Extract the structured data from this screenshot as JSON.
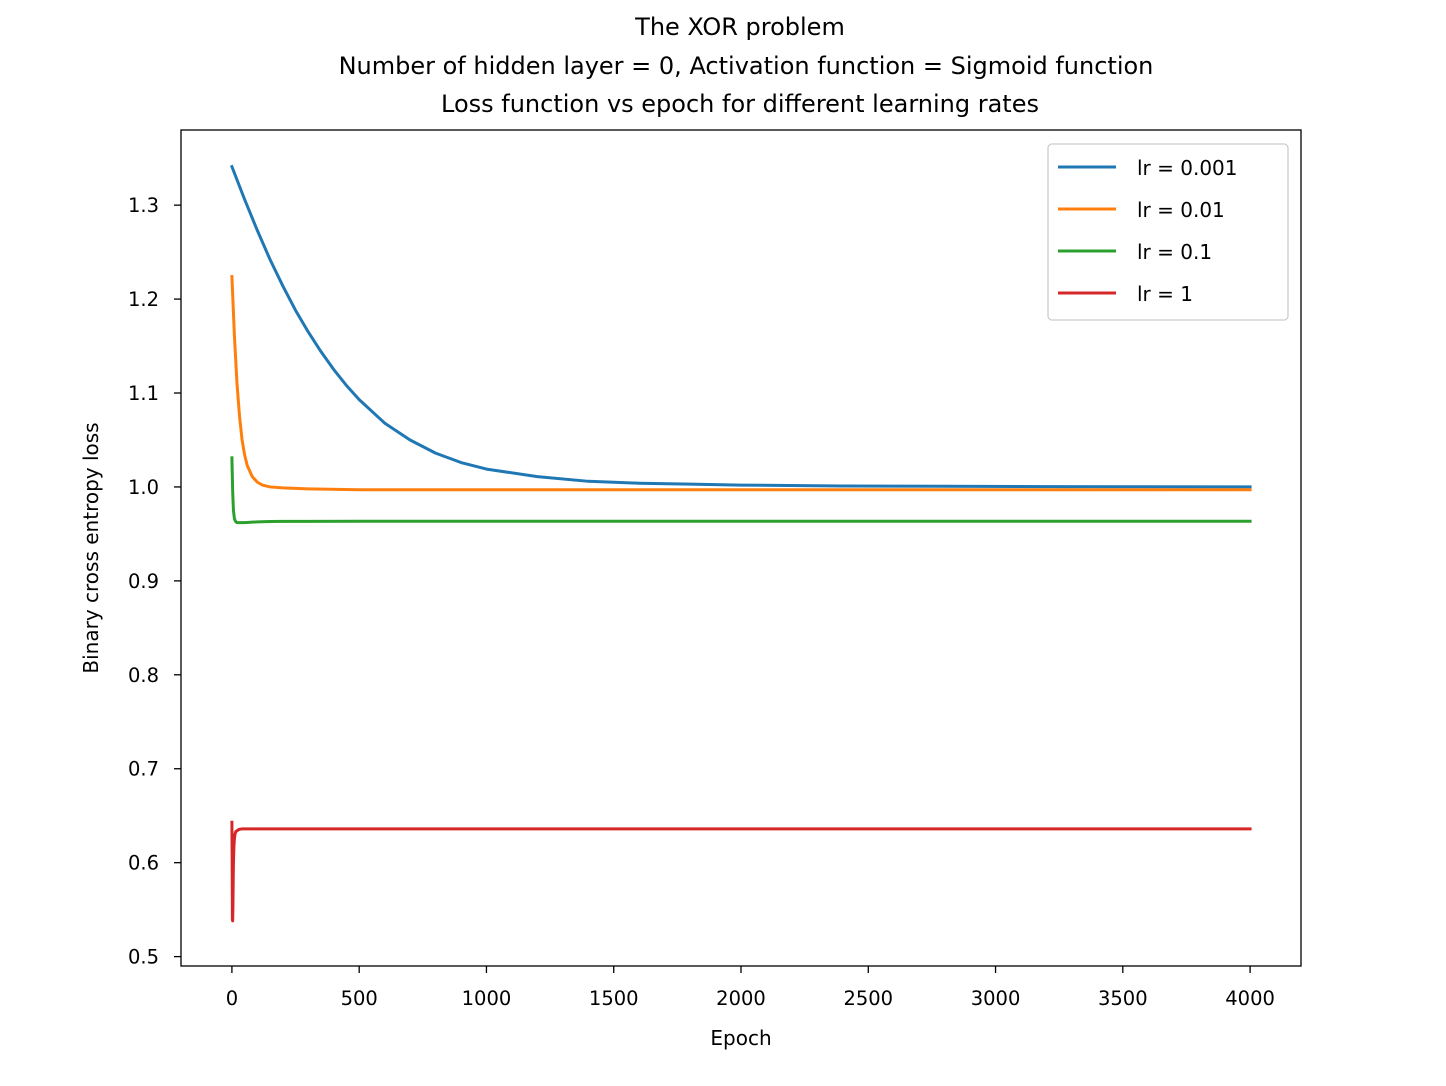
{
  "chart_data": {
    "type": "line",
    "title": "The XOR problem",
    "subtitle": "Number of hidden layer = 0, Activation function = Sigmoid function",
    "subtitle2": "Loss function vs epoch for different learning rates",
    "xlabel": "Epoch",
    "ylabel": "Binary cross entropy loss",
    "xlim": [
      -200,
      4200
    ],
    "ylim": [
      0.49,
      1.38
    ],
    "xticks": [
      0,
      500,
      1000,
      1500,
      2000,
      2500,
      3000,
      3500,
      4000
    ],
    "xtick_labels": [
      "0",
      "500",
      "1000",
      "1500",
      "2000",
      "2500",
      "3000",
      "3500",
      "4000"
    ],
    "yticks": [
      0.5,
      0.6,
      0.7,
      0.8,
      0.9,
      1.0,
      1.1,
      1.2,
      1.3
    ],
    "ytick_labels": [
      "0.5",
      "0.6",
      "0.7",
      "0.8",
      "0.9",
      "1.0",
      "1.1",
      "1.2",
      "1.3"
    ],
    "grid": false,
    "legend_position": "top-right",
    "series": [
      {
        "name": "lr = 0.001",
        "color": "#1f77b4",
        "x": [
          0,
          50,
          100,
          150,
          200,
          250,
          300,
          350,
          400,
          450,
          500,
          600,
          700,
          800,
          900,
          1000,
          1200,
          1400,
          1600,
          1800,
          2000,
          2400,
          2800,
          3200,
          3600,
          4000
        ],
        "y": [
          1.341,
          1.306,
          1.273,
          1.242,
          1.214,
          1.188,
          1.165,
          1.144,
          1.125,
          1.108,
          1.093,
          1.068,
          1.05,
          1.036,
          1.026,
          1.019,
          1.011,
          1.006,
          1.004,
          1.003,
          1.002,
          1.001,
          1.0007,
          1.0004,
          1.0002,
          1.0001
        ]
      },
      {
        "name": "lr = 0.01",
        "color": "#ff7f0e",
        "x": [
          0,
          10,
          20,
          30,
          40,
          50,
          60,
          80,
          100,
          120,
          150,
          200,
          300,
          500,
          1000,
          1500,
          2000,
          3000,
          4000
        ],
        "y": [
          1.224,
          1.16,
          1.11,
          1.075,
          1.05,
          1.034,
          1.023,
          1.011,
          1.005,
          1.002,
          1.0,
          0.999,
          0.998,
          0.997,
          0.997,
          0.997,
          0.997,
          0.997,
          0.997
        ]
      },
      {
        "name": "lr = 0.1",
        "color": "#2ca02c",
        "x": [
          0,
          3,
          6,
          10,
          15,
          20,
          30,
          45,
          60,
          80,
          100,
          150,
          200,
          300,
          500,
          1000,
          2000,
          3000,
          4000
        ],
        "y": [
          1.031,
          0.995,
          0.975,
          0.966,
          0.963,
          0.962,
          0.962,
          0.962,
          0.9622,
          0.9625,
          0.9628,
          0.9632,
          0.9633,
          0.9634,
          0.9635,
          0.9635,
          0.9635,
          0.9635,
          0.9635
        ]
      },
      {
        "name": "lr = 1",
        "color": "#d62728",
        "x": [
          0,
          1,
          2,
          3,
          4,
          5,
          6,
          8,
          10,
          12,
          15,
          20,
          25,
          30,
          40,
          50,
          70,
          100,
          200,
          500,
          1000,
          2000,
          3000,
          4000
        ],
        "y": [
          0.643,
          0.6,
          0.54,
          0.538,
          0.555,
          0.58,
          0.6,
          0.618,
          0.626,
          0.63,
          0.633,
          0.634,
          0.635,
          0.6355,
          0.636,
          0.636,
          0.636,
          0.636,
          0.636,
          0.636,
          0.636,
          0.636,
          0.636,
          0.636
        ]
      }
    ]
  }
}
